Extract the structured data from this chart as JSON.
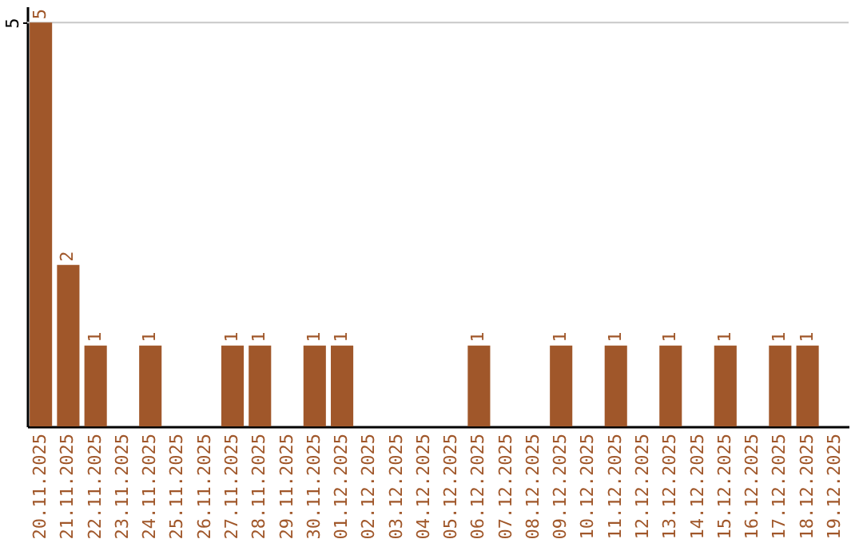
{
  "chart_data": {
    "type": "bar",
    "categories": [
      "20.11.2025",
      "21.11.2025",
      "22.11.2025",
      "23.11.2025",
      "24.11.2025",
      "25.11.2025",
      "26.11.2025",
      "27.11.2025",
      "28.11.2025",
      "29.11.2025",
      "30.11.2025",
      "01.12.2025",
      "02.12.2025",
      "03.12.2025",
      "04.12.2025",
      "05.12.2025",
      "06.12.2025",
      "07.12.2025",
      "08.12.2025",
      "09.12.2025",
      "10.12.2025",
      "11.12.2025",
      "12.12.2025",
      "13.12.2025",
      "14.12.2025",
      "15.12.2025",
      "16.12.2025",
      "17.12.2025",
      "18.12.2025",
      "19.12.2025"
    ],
    "values": [
      5,
      2,
      1,
      0,
      1,
      0,
      0,
      1,
      1,
      0,
      1,
      1,
      0,
      0,
      0,
      0,
      1,
      0,
      0,
      1,
      0,
      1,
      0,
      1,
      0,
      1,
      0,
      1,
      1,
      0
    ],
    "value_labels": [
      "5",
      "2",
      "1",
      null,
      "1",
      null,
      null,
      "1",
      "1",
      null,
      "1",
      "1",
      null,
      null,
      null,
      null,
      "1",
      null,
      null,
      "1",
      null,
      "1",
      null,
      "1",
      null,
      "1",
      null,
      "1",
      "1",
      null
    ],
    "color": "#a0572a",
    "ylim": [
      0,
      5.2
    ],
    "yticks": [
      5
    ],
    "grid": "y"
  }
}
